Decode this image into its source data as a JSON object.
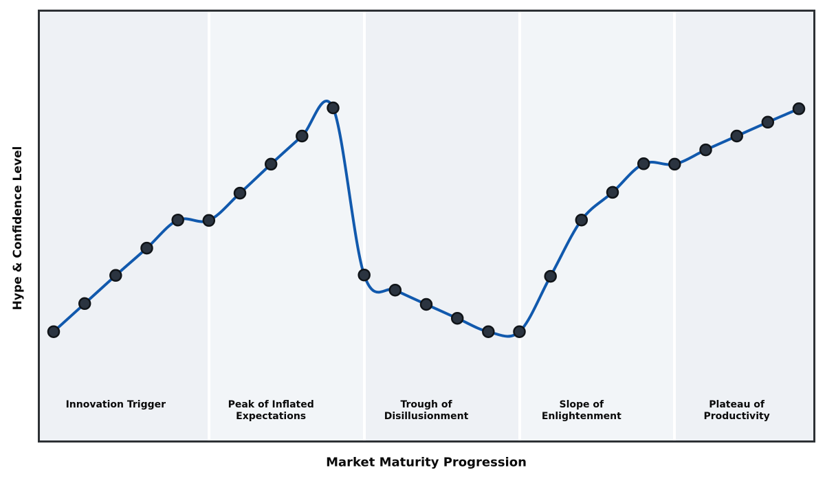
{
  "axes": {
    "y_label": "Hype & Confidence Level",
    "x_label": "Market Maturity Progression"
  },
  "phases": [
    {
      "label": "Innovation Trigger",
      "center_index": 2
    },
    {
      "label": "Peak of Inflated\nExpectations",
      "center_index": 7
    },
    {
      "label": "Trough of\nDisillusionment",
      "center_index": 12
    },
    {
      "label": "Slope of\nEnlightenment",
      "center_index": 17
    },
    {
      "label": "Plateau of\nProductivity",
      "center_index": 22
    }
  ],
  "chart_data": {
    "type": "line",
    "title": "",
    "xlabel": "Market Maturity Progression",
    "ylabel": "Hype & Confidence Level",
    "x": [
      0,
      1,
      2,
      3,
      4,
      5,
      6,
      7,
      8,
      9,
      10,
      11,
      12,
      13,
      14,
      15,
      16,
      17,
      18,
      19,
      20,
      21,
      22,
      23,
      24
    ],
    "series": [
      {
        "name": "Hype & Confidence Level",
        "values": [
          25.6,
          32.1,
          38.6,
          44.9,
          51.4,
          51.3,
          57.6,
          64.3,
          70.8,
          77.3,
          38.7,
          35.2,
          31.9,
          28.7,
          25.6,
          25.6,
          38.4,
          51.4,
          57.8,
          64.4,
          64.3,
          67.6,
          70.8,
          74.0,
          77.1
        ]
      }
    ],
    "xlim": [
      -0.51,
      24.53
    ],
    "ylim": [
      0,
      100
    ],
    "grid": false,
    "legend": false,
    "axis_ticks": "none",
    "smoothing": "cubic-spline",
    "markers": "filled-circles",
    "phase_boundary_x": [
      5,
      10,
      15,
      20
    ],
    "phase_label_x": [
      2,
      7,
      12,
      17,
      22
    ]
  },
  "style": {
    "panel_bg_odd": "#eef1f5",
    "panel_bg_even": "#f2f5f8",
    "divider_color": "#ffffff",
    "border_color": "#2d3135",
    "line_color": "#1159ad",
    "marker_fill": "#2b3440",
    "marker_edge": "#101418",
    "label_color": "#0a0a0a"
  }
}
